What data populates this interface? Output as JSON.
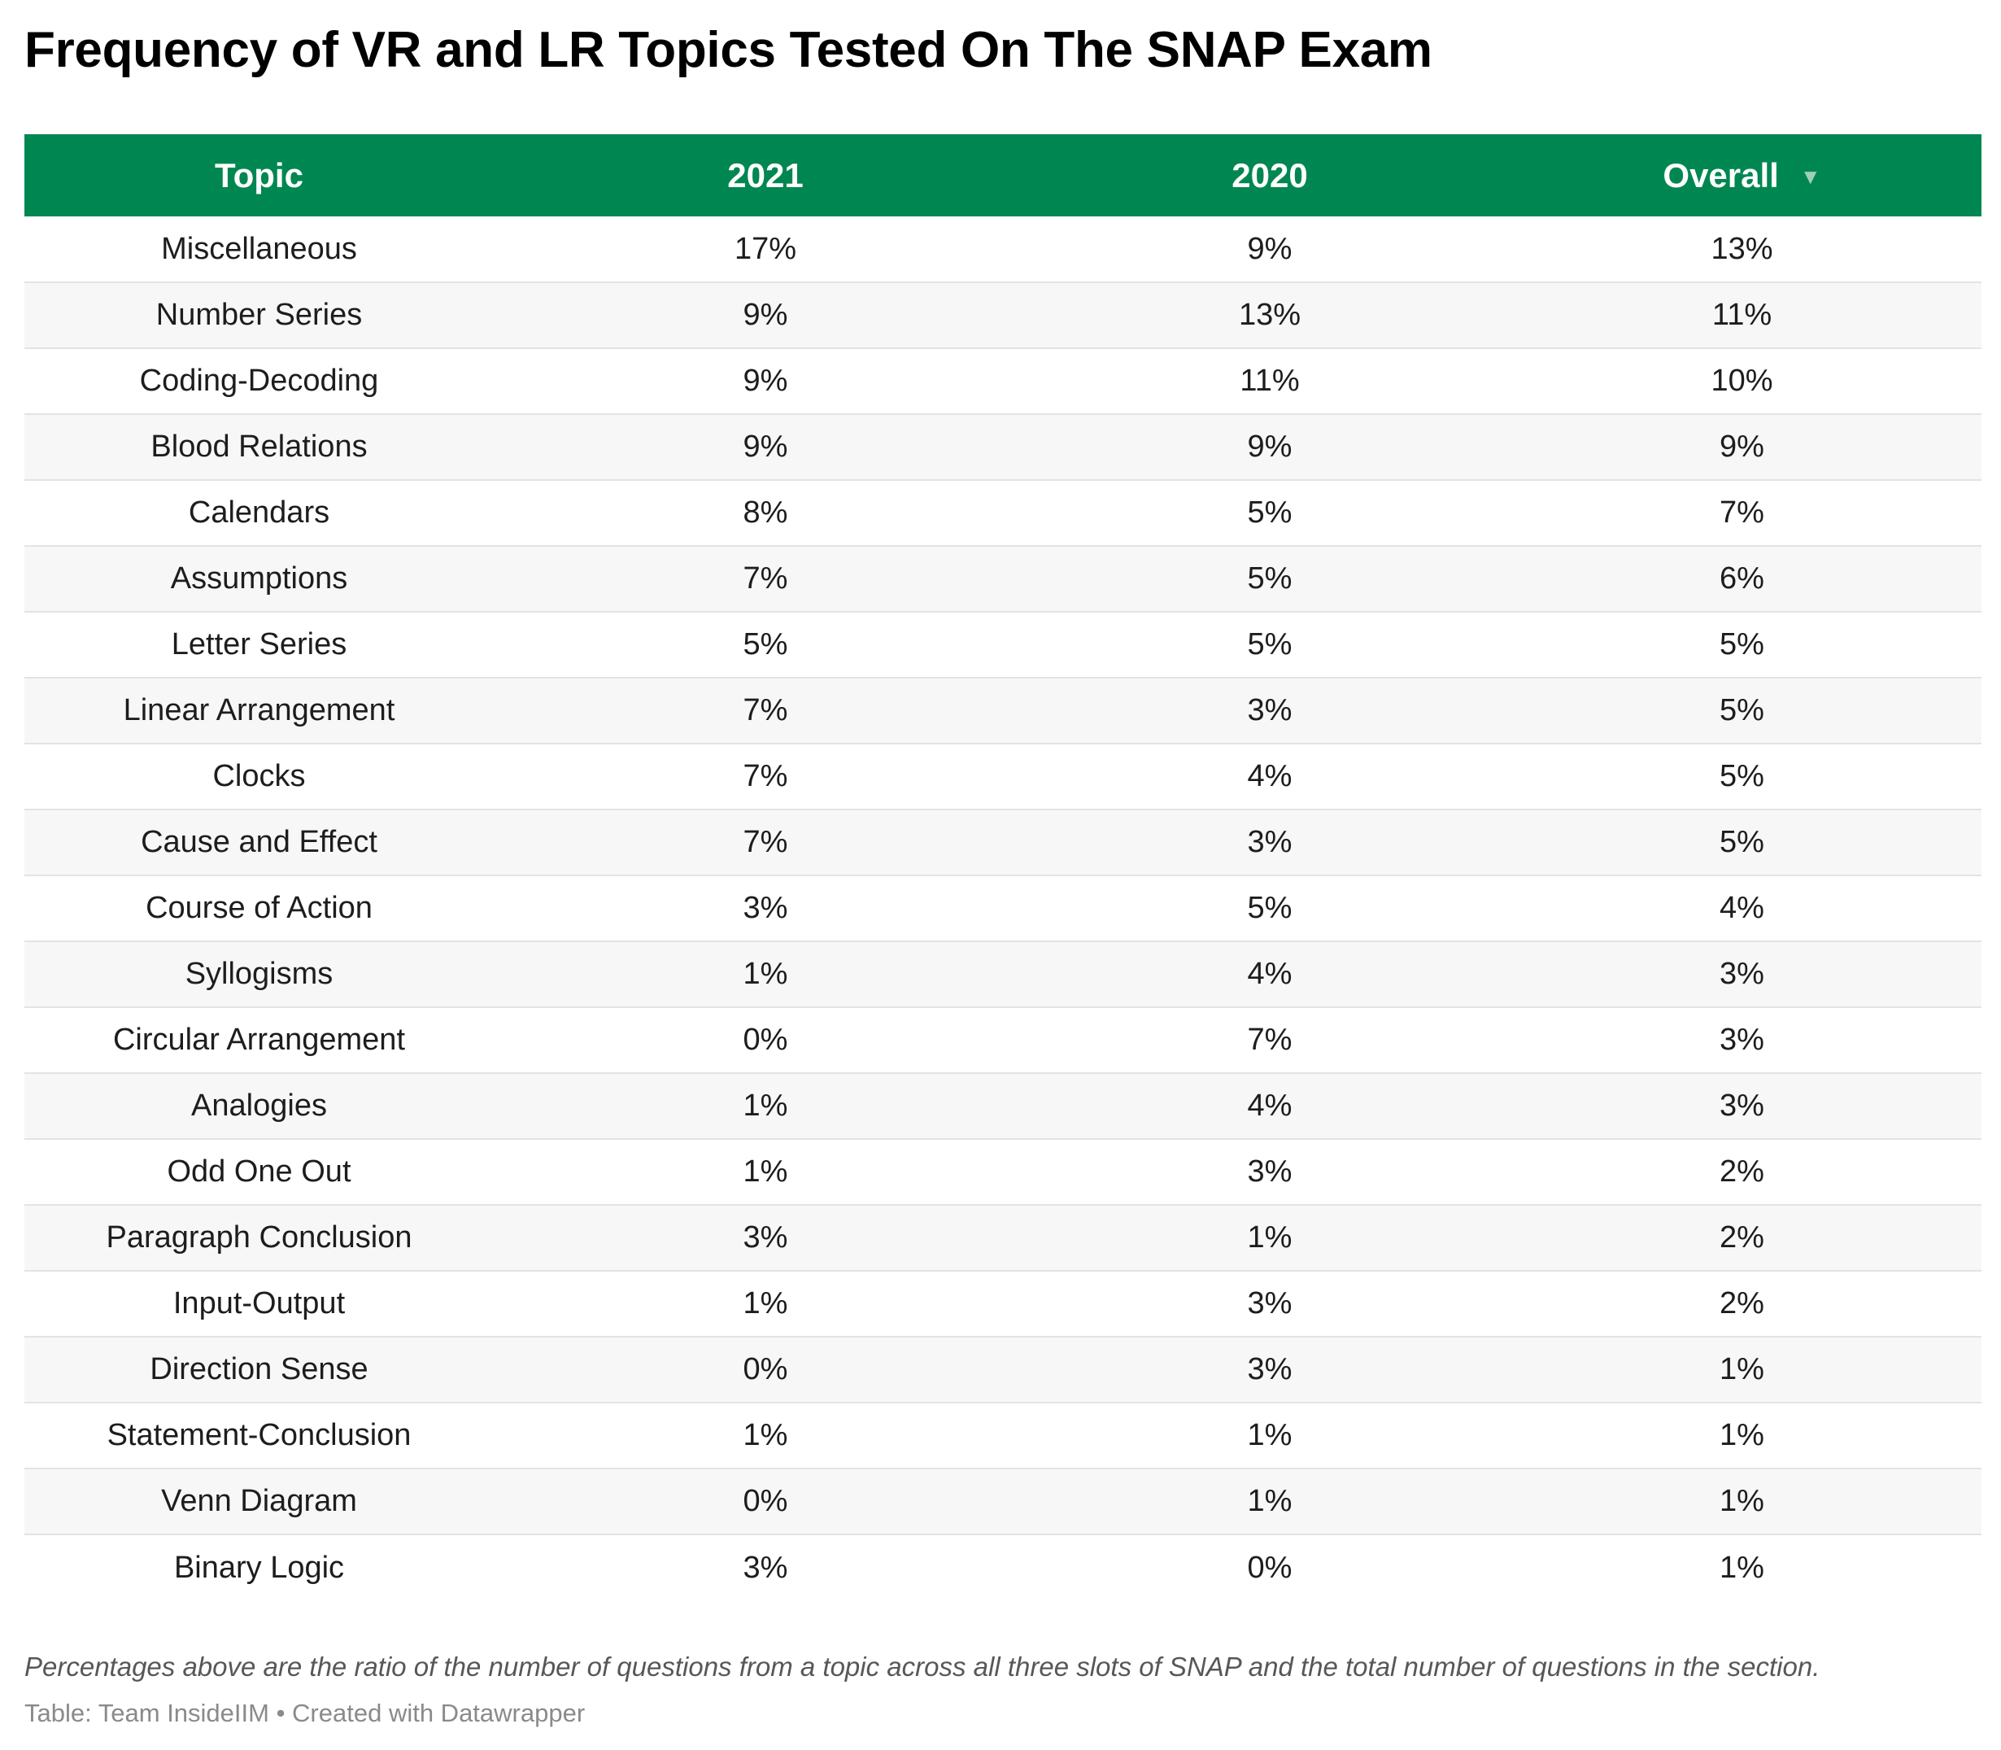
{
  "title": "Frequency of VR and LR Topics Tested On The SNAP Exam",
  "colors": {
    "header_bg": "#008751",
    "header_text": "#ffffff",
    "sort_icon": "#9fcfb5",
    "row_alt_bg": "#f7f7f7",
    "row_border": "#e3e3e3"
  },
  "header": {
    "sort_icon": "▼"
  },
  "chart_data": {
    "type": "table",
    "title": "Frequency of VR and LR Topics Tested On The SNAP Exam",
    "columns": [
      "Topic",
      "2021",
      "2020",
      "Overall"
    ],
    "sorted_by": "Overall",
    "sort_direction": "descending",
    "rows": [
      [
        "Miscellaneous",
        "17%",
        "9%",
        "13%"
      ],
      [
        "Number Series",
        "9%",
        "13%",
        "11%"
      ],
      [
        "Coding-Decoding",
        "9%",
        "11%",
        "10%"
      ],
      [
        "Blood Relations",
        "9%",
        "9%",
        "9%"
      ],
      [
        "Calendars",
        "8%",
        "5%",
        "7%"
      ],
      [
        "Assumptions",
        "7%",
        "5%",
        "6%"
      ],
      [
        "Letter Series",
        "5%",
        "5%",
        "5%"
      ],
      [
        "Linear Arrangement",
        "7%",
        "3%",
        "5%"
      ],
      [
        "Clocks",
        "7%",
        "4%",
        "5%"
      ],
      [
        "Cause and Effect",
        "7%",
        "3%",
        "5%"
      ],
      [
        "Course of Action",
        "3%",
        "5%",
        "4%"
      ],
      [
        "Syllogisms",
        "1%",
        "4%",
        "3%"
      ],
      [
        "Circular Arrangement",
        "0%",
        "7%",
        "3%"
      ],
      [
        "Analogies",
        "1%",
        "4%",
        "3%"
      ],
      [
        "Odd One Out",
        "1%",
        "3%",
        "2%"
      ],
      [
        "Paragraph Conclusion",
        "3%",
        "1%",
        "2%"
      ],
      [
        "Input-Output",
        "1%",
        "3%",
        "2%"
      ],
      [
        "Direction Sense",
        "0%",
        "3%",
        "1%"
      ],
      [
        "Statement-Conclusion",
        "1%",
        "1%",
        "1%"
      ],
      [
        "Venn Diagram",
        "0%",
        "1%",
        "1%"
      ],
      [
        "Binary Logic",
        "3%",
        "0%",
        "1%"
      ]
    ]
  },
  "notes": "Percentages above are the ratio of the number of questions from a topic across all three slots of SNAP and the total number of questions in the section.",
  "footer": "Table: Team InsideIIM • Created with Datawrapper"
}
